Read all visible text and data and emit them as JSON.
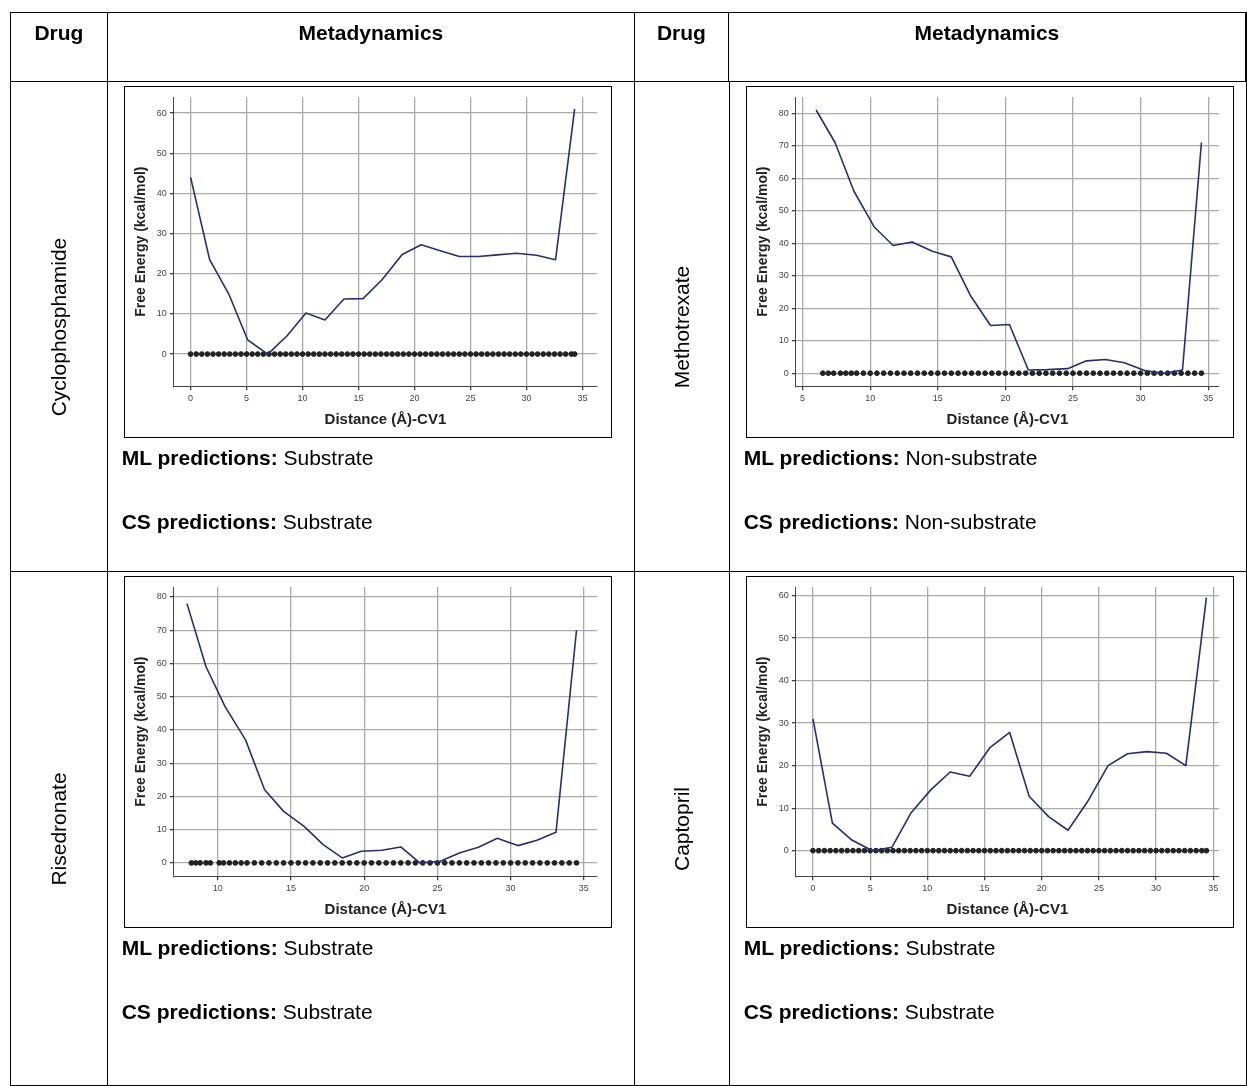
{
  "chart_data": [
    {
      "type": "other",
      "annotations": [
        "Drug",
        "Metadynamics",
        "Drug",
        "Metadynamics"
      ]
    },
    {
      "type": "line",
      "title": "Cyclophosphamide",
      "xlabel": "Distance (Å)-CV1",
      "ylabel": "Free Energy (kcal/mol)",
      "xlim": [
        -1.5,
        36.3
      ],
      "ylim": [
        -8,
        64
      ],
      "xticks": [
        0,
        5,
        10,
        15,
        20,
        25,
        30,
        35
      ],
      "yticks": [
        0,
        10,
        20,
        30,
        40,
        50,
        60
      ],
      "grid": true,
      "series": [
        {
          "type": "line",
          "color": "#27306e",
          "x": [
            0,
            1.7,
            3.4,
            5.1,
            6.9,
            8.6,
            10.3,
            12,
            13.7,
            15.4,
            17.1,
            18.9,
            20.6,
            22.3,
            24,
            25.7,
            27.4,
            29.1,
            30.9,
            32.6,
            34.3
          ],
          "values": [
            44,
            23.5,
            15,
            3.5,
            0,
            4.5,
            10.2,
            8.5,
            13.7,
            13.8,
            18.5,
            24.8,
            27.2,
            25.7,
            24.3,
            24.3,
            24.7,
            25.1,
            24.6,
            23.5,
            61
          ]
        },
        {
          "type": "scatter",
          "marker": "circle",
          "color": "#222222",
          "x": [
            0,
            0.5,
            1,
            1.5,
            2,
            2.5,
            3,
            3.5,
            4,
            4.5,
            5,
            5.5,
            6,
            6.5,
            7,
            7.5,
            8,
            8.5,
            9,
            9.5,
            10,
            10.5,
            11,
            11.5,
            12,
            12.5,
            13,
            13.5,
            14,
            14.5,
            15,
            15.5,
            16,
            16.5,
            17,
            17.5,
            18,
            18.5,
            19,
            19.5,
            20,
            20.5,
            21,
            21.5,
            22,
            22.5,
            23,
            23.5,
            24,
            24.5,
            25,
            25.5,
            26,
            26.5,
            27,
            27.5,
            28,
            28.5,
            29,
            29.5,
            30,
            30.5,
            31,
            31.5,
            32,
            32.5,
            33,
            33.5,
            34,
            34.3
          ],
          "values": [
            0,
            0,
            0,
            0,
            0,
            0,
            0,
            0,
            0,
            0,
            0,
            0,
            0,
            0,
            0,
            0,
            0,
            0,
            0,
            0,
            0,
            0,
            0,
            0,
            0,
            0,
            0,
            0,
            0,
            0,
            0,
            0,
            0,
            0,
            0,
            0,
            0,
            0,
            0,
            0,
            0,
            0,
            0,
            0,
            0,
            0,
            0,
            0,
            0,
            0,
            0,
            0,
            0,
            0,
            0,
            0,
            0,
            0,
            0,
            0,
            0,
            0,
            0,
            0,
            0,
            0,
            0,
            0,
            0,
            0
          ]
        }
      ],
      "annotations": [
        "ML predictions: Substrate",
        "CS predictions: Substrate"
      ]
    },
    {
      "type": "line",
      "title": "Methotrexate",
      "xlabel": "Distance (Å)-CV1",
      "ylabel": "Free Energy (kcal/mol)",
      "xlim": [
        4.5,
        35.8
      ],
      "ylim": [
        -4,
        85
      ],
      "xticks": [
        5,
        10,
        15,
        20,
        25,
        30,
        35
      ],
      "yticks": [
        0,
        10,
        20,
        30,
        40,
        50,
        60,
        70,
        80
      ],
      "grid": true,
      "series": [
        {
          "type": "line",
          "color": "#27306e",
          "x": [
            6,
            7.4,
            8.8,
            10.3,
            11.7,
            13.1,
            14.6,
            16,
            17.4,
            18.9,
            20.3,
            21.7,
            23.1,
            24.6,
            26,
            27.4,
            28.8,
            30.3,
            31.7,
            33.1,
            34.5
          ],
          "values": [
            81,
            71,
            56,
            45,
            39.3,
            40.4,
            37.5,
            35.8,
            24,
            14.7,
            15,
            1,
            1.1,
            1.4,
            3.8,
            4.2,
            3.2,
            0.8,
            0,
            1,
            71
          ]
        },
        {
          "type": "scatter",
          "marker": "circle",
          "color": "#222222",
          "x": [
            6.5,
            6.9,
            7.3,
            7.8,
            8.2,
            8.6,
            9,
            9.5,
            10,
            10.5,
            11,
            11.5,
            12,
            12.5,
            13,
            13.5,
            14,
            14.5,
            15,
            15.5,
            16,
            16.5,
            17,
            17.5,
            18,
            18.5,
            19,
            19.5,
            20,
            20.5,
            21,
            21.5,
            22,
            22.5,
            23,
            23.5,
            24,
            24.5,
            25,
            25.5,
            26,
            26.5,
            27,
            27.5,
            28,
            28.5,
            29,
            29.5,
            30,
            30.5,
            31,
            31.5,
            32,
            32.5,
            33,
            33.5,
            34,
            34.5
          ],
          "values": [
            0,
            0,
            0,
            0,
            0,
            0,
            0,
            0,
            0,
            0,
            0,
            0,
            0,
            0,
            0,
            0,
            0,
            0,
            0,
            0,
            0,
            0,
            0,
            0,
            0,
            0,
            0,
            0,
            0,
            0,
            0,
            0,
            0,
            0,
            0,
            0,
            0,
            0,
            0,
            0,
            0,
            0,
            0,
            0,
            0,
            0,
            0,
            0,
            0,
            0,
            0,
            0,
            0,
            0,
            0,
            0,
            0,
            0
          ]
        }
      ],
      "annotations": [
        "ML predictions: Non-substrate",
        "CS predictions: Non-substrate"
      ]
    },
    {
      "type": "line",
      "title": "Risedronate",
      "xlabel": "Distance (Å)-CV1",
      "ylabel": "Free Energy (kcal/mol)",
      "xlim": [
        7,
        35.9
      ],
      "ylim": [
        -4,
        83
      ],
      "xticks": [
        10,
        15,
        20,
        25,
        30,
        35
      ],
      "yticks": [
        0,
        10,
        20,
        30,
        40,
        50,
        60,
        70,
        80
      ],
      "grid": true,
      "series": [
        {
          "type": "line",
          "color": "#27306e",
          "x": [
            7.9,
            9.2,
            10.5,
            11.9,
            13.2,
            14.5,
            15.9,
            17.2,
            18.5,
            19.8,
            21.2,
            22.5,
            23.8,
            25.2,
            26.5,
            27.8,
            29.1,
            30.5,
            31.8,
            33.1,
            34.5
          ],
          "values": [
            78,
            59,
            47,
            37,
            22,
            15.5,
            11,
            5.5,
            1.5,
            3.5,
            3.8,
            4.8,
            0,
            0.5,
            3,
            4.7,
            7.4,
            5.2,
            6.8,
            9.2,
            70
          ]
        },
        {
          "type": "scatter",
          "marker": "circle",
          "color": "#222222",
          "x": [
            8.2,
            8.5,
            8.8,
            9.2,
            9.5,
            10.1,
            10.4,
            10.8,
            11.2,
            11.6,
            12,
            12.5,
            13,
            13.5,
            14,
            14.5,
            15,
            15.5,
            16,
            16.5,
            17,
            17.5,
            18,
            18.5,
            19,
            19.5,
            20,
            20.5,
            21,
            21.5,
            22,
            22.5,
            23,
            23.5,
            24,
            24.5,
            25,
            25.5,
            26,
            26.5,
            27,
            27.5,
            28,
            28.5,
            29,
            29.5,
            30,
            30.5,
            31,
            31.5,
            32,
            32.5,
            33,
            33.5,
            34,
            34.5
          ],
          "values": [
            0,
            0,
            0,
            0,
            0,
            0,
            0,
            0,
            0,
            0,
            0,
            0,
            0,
            0,
            0,
            0,
            0,
            0,
            0,
            0,
            0,
            0,
            0,
            0,
            0,
            0,
            0,
            0,
            0,
            0,
            0,
            0,
            0,
            0,
            0,
            0,
            0,
            0,
            0,
            0,
            0,
            0,
            0,
            0,
            0,
            0,
            0,
            0,
            0,
            0,
            0,
            0,
            0,
            0,
            0,
            0
          ]
        }
      ],
      "annotations": [
        "ML predictions: Substrate",
        "CS predictions: Substrate"
      ]
    },
    {
      "type": "line",
      "title": "Captopril",
      "xlabel": "Distance (Å)-CV1",
      "ylabel": "Free Energy (kcal/mol)",
      "xlim": [
        -1.5,
        35.5
      ],
      "ylim": [
        -6,
        62
      ],
      "xticks": [
        0,
        5,
        10,
        15,
        20,
        25,
        30,
        35
      ],
      "yticks": [
        0,
        10,
        20,
        30,
        40,
        50,
        60
      ],
      "grid": true,
      "series": [
        {
          "type": "line",
          "color": "#27306e",
          "x": [
            0,
            1.7,
            3.4,
            5.2,
            6.9,
            8.6,
            10.3,
            12,
            13.7,
            15.5,
            17.2,
            18.9,
            20.6,
            22.3,
            24,
            25.8,
            27.5,
            29.2,
            30.9,
            32.6,
            34.4
          ],
          "values": [
            31,
            6.5,
            2.5,
            0,
            0.8,
            9,
            14.3,
            18.5,
            17.5,
            24.3,
            27.8,
            12.8,
            8,
            4.8,
            11.5,
            20,
            22.8,
            23.3,
            22.9,
            20,
            59.5
          ]
        },
        {
          "type": "scatter",
          "marker": "circle",
          "color": "#222222",
          "x": [
            0,
            0.5,
            1,
            1.5,
            2,
            2.5,
            3,
            3.5,
            4,
            4.5,
            5,
            5.5,
            6,
            6.5,
            7,
            7.5,
            8,
            8.5,
            9,
            9.5,
            10,
            10.5,
            11,
            11.5,
            12,
            12.5,
            13,
            13.5,
            14,
            14.5,
            15,
            15.5,
            16,
            16.5,
            17,
            17.5,
            18,
            18.5,
            19,
            19.5,
            20,
            20.5,
            21,
            21.5,
            22,
            22.5,
            23,
            23.5,
            24,
            24.5,
            25,
            25.5,
            26,
            26.5,
            27,
            27.5,
            28,
            28.5,
            29,
            29.5,
            30,
            30.5,
            31,
            31.5,
            32,
            32.5,
            33,
            33.5,
            34,
            34.4
          ],
          "values": [
            0,
            0,
            0,
            0,
            0,
            0,
            0,
            0,
            0,
            0,
            0,
            0,
            0,
            0,
            0,
            0,
            0,
            0,
            0,
            0,
            0,
            0,
            0,
            0,
            0,
            0,
            0,
            0,
            0,
            0,
            0,
            0,
            0,
            0,
            0,
            0,
            0,
            0,
            0,
            0,
            0,
            0,
            0,
            0,
            0,
            0,
            0,
            0,
            0,
            0,
            0,
            0,
            0,
            0,
            0,
            0,
            0,
            0,
            0,
            0,
            0,
            0,
            0,
            0,
            0,
            0,
            0,
            0,
            0,
            0
          ]
        }
      ],
      "annotations": [
        "ML predictions: Substrate",
        "CS predictions: Substrate"
      ]
    }
  ]
}
